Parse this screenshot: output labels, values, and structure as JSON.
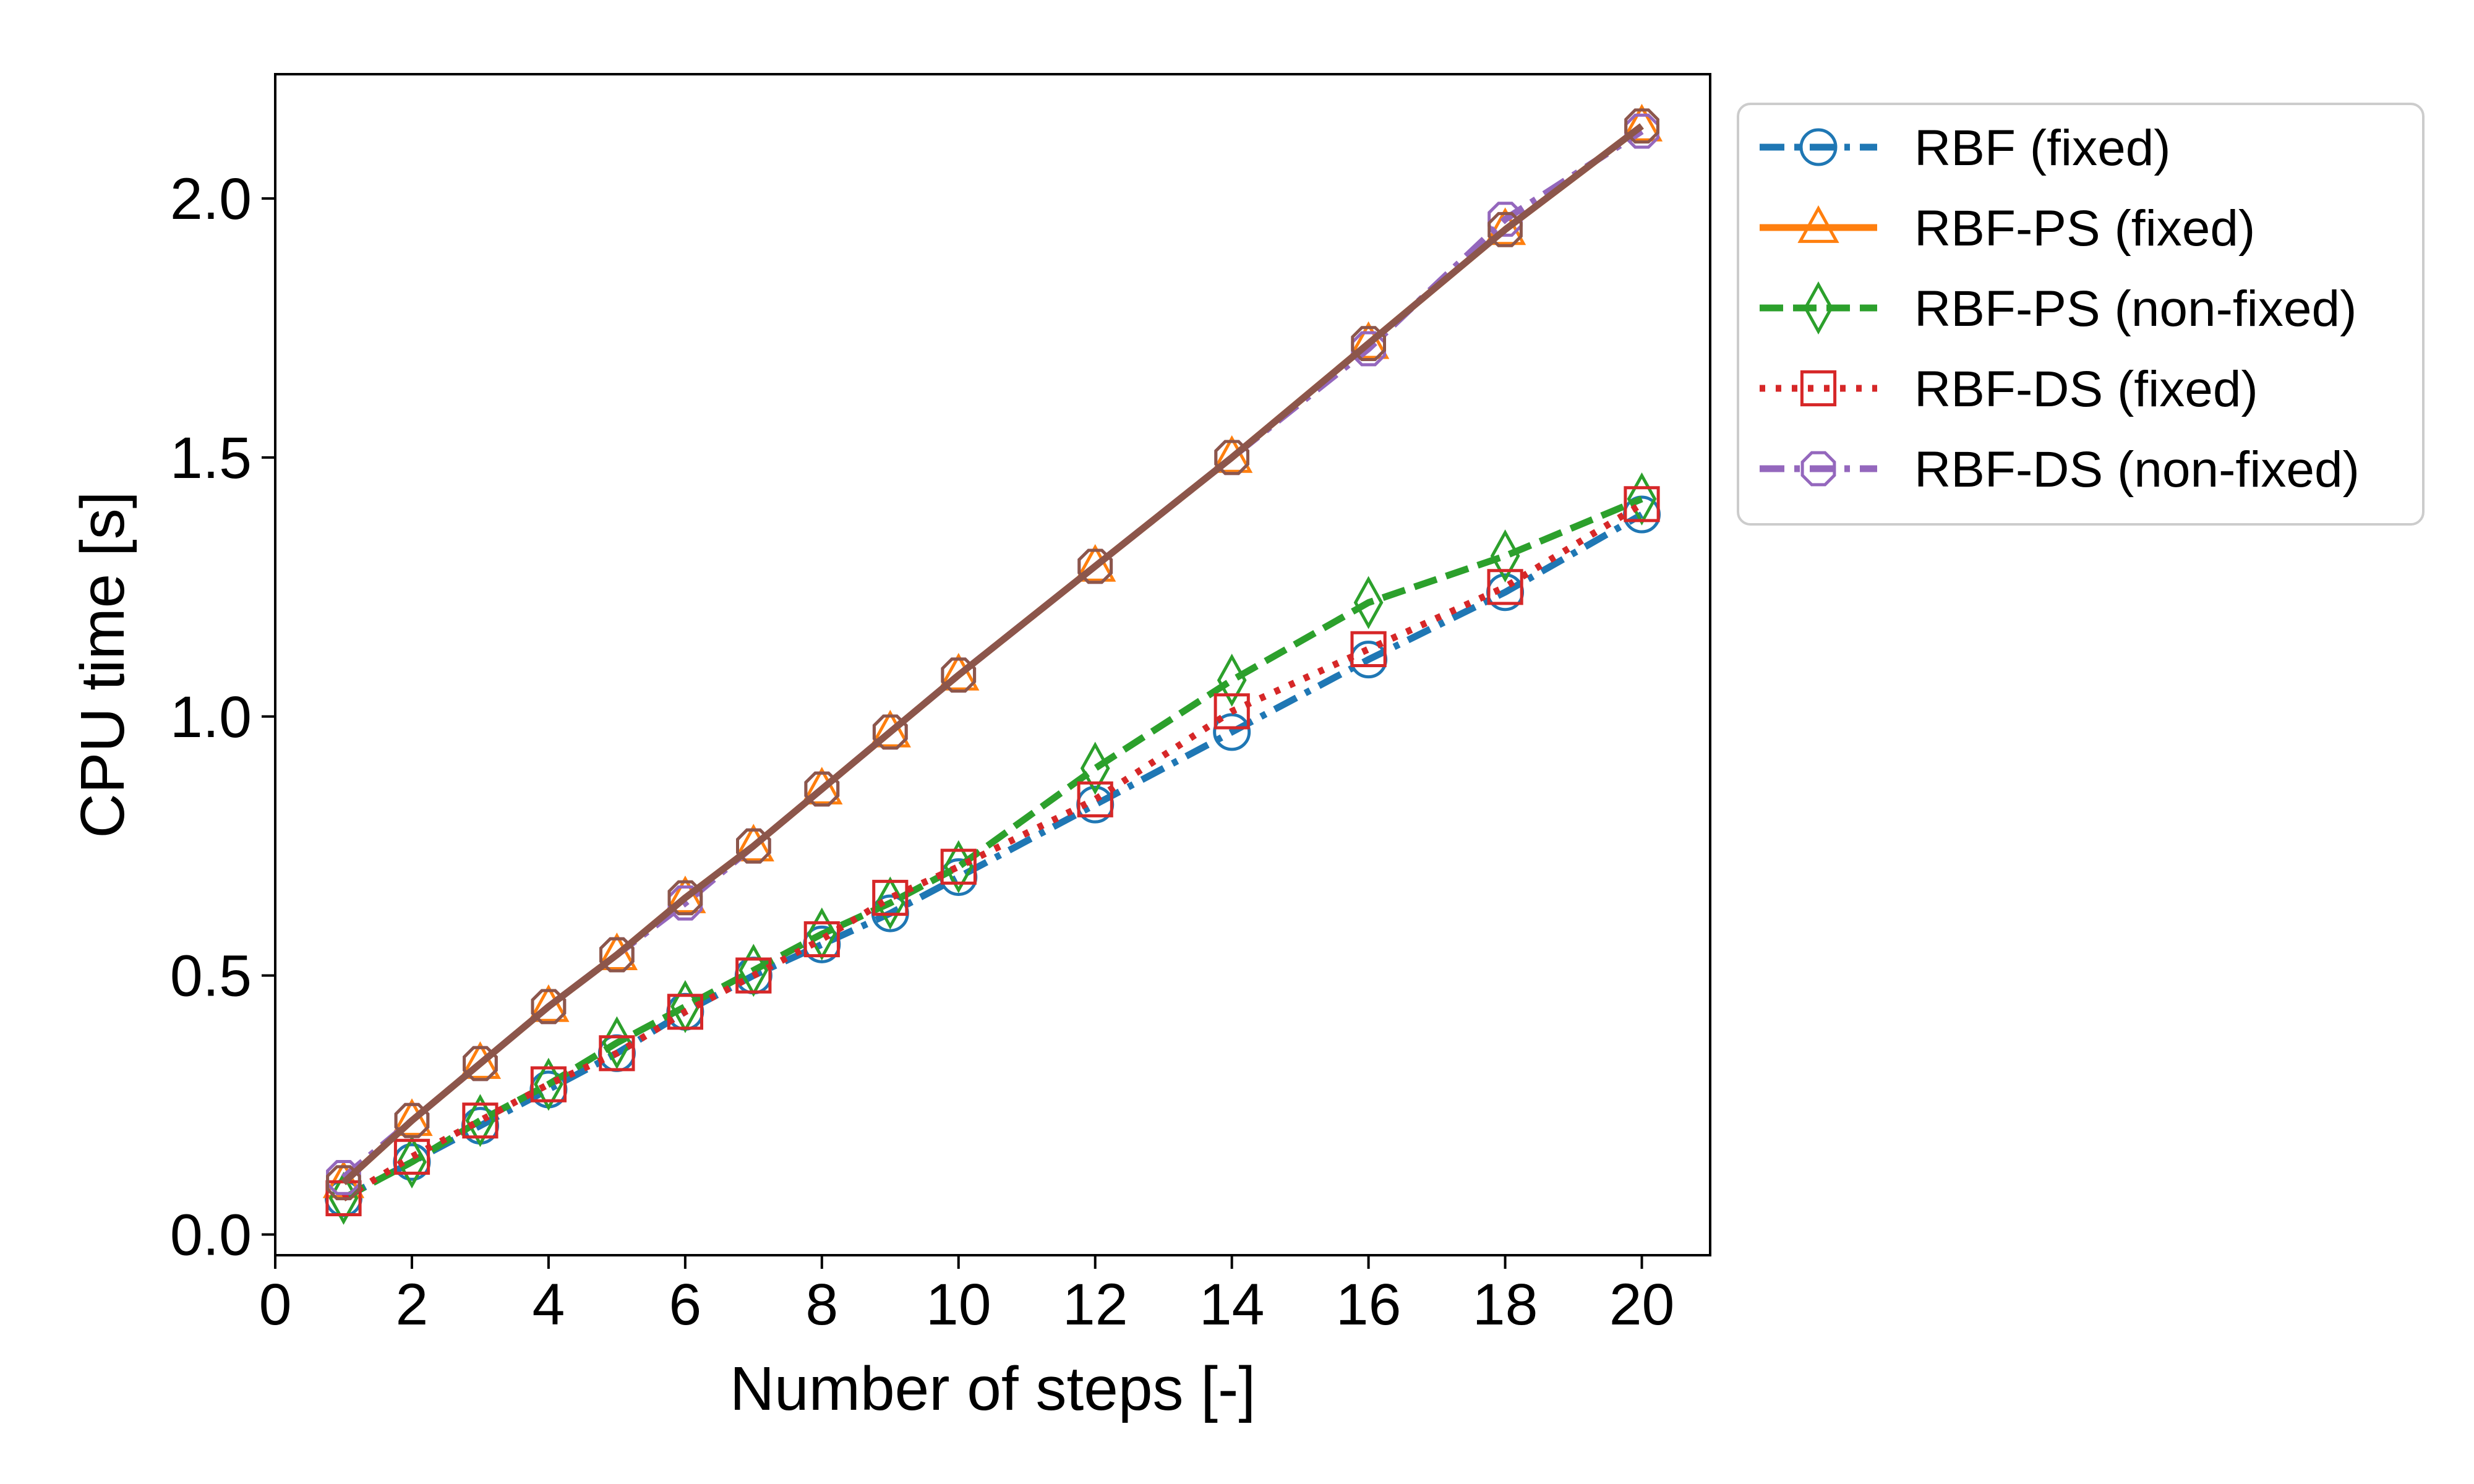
{
  "chart_data": {
    "type": "line",
    "xlabel": "Number of steps [-]",
    "ylabel": "CPU time [s]",
    "xlim": [
      0,
      21
    ],
    "ylim": [
      -0.04,
      2.24
    ],
    "xticks": [
      0,
      2,
      4,
      6,
      8,
      10,
      12,
      14,
      16,
      18,
      20
    ],
    "xtick_labels": [
      "0",
      "2",
      "4",
      "6",
      "8",
      "10",
      "12",
      "14",
      "16",
      "18",
      "20"
    ],
    "yticks": [
      0.0,
      0.5,
      1.0,
      1.5,
      2.0
    ],
    "ytick_labels": [
      "0.0",
      "0.5",
      "1.0",
      "1.5",
      "2.0"
    ],
    "grid": false,
    "legend_position": "outside-right-top",
    "x": [
      1,
      2,
      3,
      4,
      5,
      6,
      7,
      8,
      9,
      10,
      12,
      14,
      16,
      18,
      20
    ],
    "series": [
      {
        "name": "RBF (fixed)",
        "color": "#1f77b4",
        "linestyle": "dashdot",
        "marker": "circle",
        "in_legend": true,
        "values": [
          0.07,
          0.14,
          0.21,
          0.28,
          0.35,
          0.43,
          0.5,
          0.56,
          0.62,
          0.69,
          0.83,
          0.97,
          1.11,
          1.24,
          1.39
        ]
      },
      {
        "name": "RBF-PS (fixed)",
        "color": "#ff7f0e",
        "linestyle": "solid",
        "marker": "triangle",
        "in_legend": true,
        "values": [
          0.1,
          0.22,
          0.33,
          0.44,
          0.54,
          0.65,
          0.75,
          0.86,
          0.97,
          1.08,
          1.29,
          1.5,
          1.72,
          1.94,
          2.14
        ]
      },
      {
        "name": "RBF-PS (non-fixed)",
        "color": "#2ca02c",
        "linestyle": "dashed",
        "marker": "diamond",
        "in_legend": true,
        "values": [
          0.07,
          0.14,
          0.22,
          0.29,
          0.37,
          0.44,
          0.51,
          0.58,
          0.64,
          0.71,
          0.9,
          1.07,
          1.22,
          1.31,
          1.42
        ]
      },
      {
        "name": "RBF-DS (fixed)",
        "color": "#d62728",
        "linestyle": "dotted",
        "marker": "square",
        "in_legend": true,
        "values": [
          0.07,
          0.15,
          0.22,
          0.29,
          0.35,
          0.43,
          0.5,
          0.57,
          0.65,
          0.71,
          0.84,
          1.01,
          1.13,
          1.25,
          1.41
        ]
      },
      {
        "name": "RBF-DS (non-fixed)",
        "color": "#9467bd",
        "linestyle": "dashdot",
        "marker": "octagon",
        "in_legend": true,
        "values": [
          0.11,
          0.22,
          0.33,
          0.44,
          0.54,
          0.64,
          0.75,
          0.86,
          0.97,
          1.08,
          1.29,
          1.5,
          1.71,
          1.96,
          2.13
        ]
      },
      {
        "name": "",
        "color": "#8c564b",
        "linestyle": "solid",
        "marker": "octagon",
        "in_legend": false,
        "values": [
          0.1,
          0.22,
          0.33,
          0.44,
          0.54,
          0.65,
          0.75,
          0.86,
          0.97,
          1.08,
          1.29,
          1.5,
          1.72,
          1.94,
          2.14
        ]
      }
    ]
  }
}
